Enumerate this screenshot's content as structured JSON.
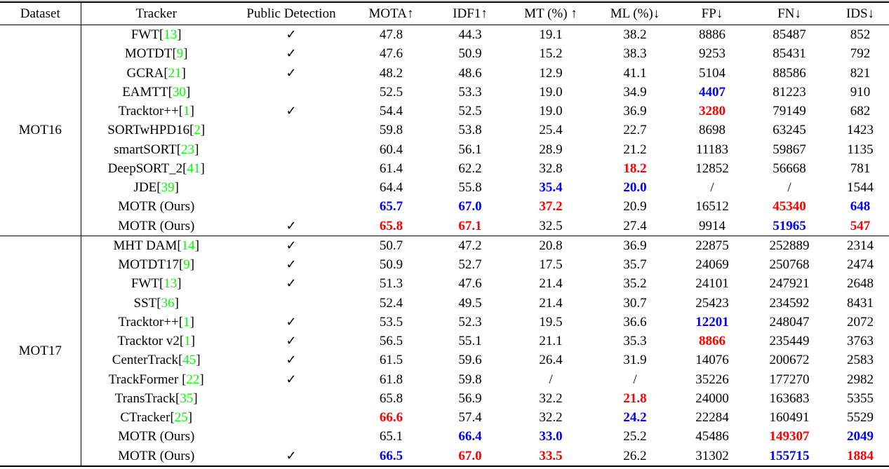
{
  "colors": {
    "citation_green": "#00ff00",
    "best_red": "#ff0000",
    "second_best_blue": "#0000ff",
    "rule_black": "#000000",
    "background": "#ffffff"
  },
  "table": {
    "checkmark": "✓",
    "slash": "/",
    "headers": [
      "Dataset",
      "Tracker",
      "Public Detection",
      "MOTA↑",
      "IDF1↑",
      "MT (%) ↑",
      "ML (%)↓",
      "FP↓",
      "FN↓",
      "IDS↓"
    ],
    "sections": [
      {
        "dataset": "MOT16",
        "rows": [
          {
            "tracker": "FWT",
            "cite": "13",
            "public": true,
            "metrics": [
              {
                "v": "47.8"
              },
              {
                "v": "44.3"
              },
              {
                "v": "19.1"
              },
              {
                "v": "38.2"
              },
              {
                "v": "8886"
              },
              {
                "v": "85487"
              },
              {
                "v": "852"
              }
            ]
          },
          {
            "tracker": "MOTDT",
            "cite": "9",
            "public": true,
            "metrics": [
              {
                "v": "47.6"
              },
              {
                "v": "50.9"
              },
              {
                "v": "15.2"
              },
              {
                "v": "38.3"
              },
              {
                "v": "9253"
              },
              {
                "v": "85431"
              },
              {
                "v": "792"
              }
            ]
          },
          {
            "tracker": "GCRA",
            "cite": "21",
            "public": true,
            "metrics": [
              {
                "v": "48.2"
              },
              {
                "v": "48.6"
              },
              {
                "v": "12.9"
              },
              {
                "v": "41.1"
              },
              {
                "v": "5104"
              },
              {
                "v": "88586"
              },
              {
                "v": "821"
              }
            ]
          },
          {
            "tracker": "EAMTT",
            "cite": "30",
            "public": false,
            "metrics": [
              {
                "v": "52.5"
              },
              {
                "v": "53.3"
              },
              {
                "v": "19.0"
              },
              {
                "v": "34.9"
              },
              {
                "v": "4407",
                "s": "blue"
              },
              {
                "v": "81223"
              },
              {
                "v": "910"
              }
            ]
          },
          {
            "tracker": "Tracktor++",
            "cite": "1",
            "public": true,
            "metrics": [
              {
                "v": "54.4"
              },
              {
                "v": "52.5"
              },
              {
                "v": "19.0"
              },
              {
                "v": "36.9"
              },
              {
                "v": "3280",
                "s": "red"
              },
              {
                "v": "79149"
              },
              {
                "v": "682"
              }
            ]
          },
          {
            "tracker": "SORTwHPD16",
            "cite": "2",
            "public": false,
            "metrics": [
              {
                "v": "59.8"
              },
              {
                "v": "53.8"
              },
              {
                "v": "25.4"
              },
              {
                "v": "22.7"
              },
              {
                "v": "8698"
              },
              {
                "v": "63245"
              },
              {
                "v": "1423"
              }
            ]
          },
          {
            "tracker": "smartSORT",
            "cite": "23",
            "public": false,
            "metrics": [
              {
                "v": "60.4"
              },
              {
                "v": "56.1"
              },
              {
                "v": "28.9"
              },
              {
                "v": "21.2"
              },
              {
                "v": "11183"
              },
              {
                "v": "59867"
              },
              {
                "v": "1135"
              }
            ]
          },
          {
            "tracker": "DeepSORT_2",
            "cite": "41",
            "public": false,
            "metrics": [
              {
                "v": "61.4"
              },
              {
                "v": "62.2"
              },
              {
                "v": "32.8"
              },
              {
                "v": "18.2",
                "s": "red"
              },
              {
                "v": "12852"
              },
              {
                "v": "56668"
              },
              {
                "v": "781"
              }
            ]
          },
          {
            "tracker": "JDE",
            "cite": "39",
            "public": false,
            "metrics": [
              {
                "v": "64.4"
              },
              {
                "v": "55.8"
              },
              {
                "v": "35.4",
                "s": "blue"
              },
              {
                "v": "20.0",
                "s": "blue"
              },
              {
                "v": "/"
              },
              {
                "v": "/"
              },
              {
                "v": "1544"
              }
            ]
          },
          {
            "tracker": "MOTR (Ours)",
            "cite": null,
            "public": false,
            "metrics": [
              {
                "v": "65.7",
                "s": "blue"
              },
              {
                "v": "67.0",
                "s": "blue"
              },
              {
                "v": "37.2",
                "s": "red"
              },
              {
                "v": "20.9"
              },
              {
                "v": "16512"
              },
              {
                "v": "45340",
                "s": "red"
              },
              {
                "v": "648",
                "s": "blue"
              }
            ]
          },
          {
            "tracker": "MOTR (Ours)",
            "cite": null,
            "public": true,
            "metrics": [
              {
                "v": "65.8",
                "s": "red"
              },
              {
                "v": "67.1",
                "s": "red"
              },
              {
                "v": "32.5"
              },
              {
                "v": "27.4"
              },
              {
                "v": "9914"
              },
              {
                "v": "51965",
                "s": "blue"
              },
              {
                "v": "547",
                "s": "red"
              }
            ]
          }
        ]
      },
      {
        "dataset": "MOT17",
        "rows": [
          {
            "tracker": "MHT DAM",
            "cite": "14",
            "public": true,
            "metrics": [
              {
                "v": "50.7"
              },
              {
                "v": "47.2"
              },
              {
                "v": "20.8"
              },
              {
                "v": "36.9"
              },
              {
                "v": "22875"
              },
              {
                "v": "252889"
              },
              {
                "v": "2314"
              }
            ]
          },
          {
            "tracker": "MOTDT17",
            "cite": "9",
            "public": true,
            "metrics": [
              {
                "v": "50.9"
              },
              {
                "v": "52.7"
              },
              {
                "v": "17.5"
              },
              {
                "v": "35.7"
              },
              {
                "v": "24069"
              },
              {
                "v": "250768"
              },
              {
                "v": "2474"
              }
            ]
          },
          {
            "tracker": "FWT",
            "cite": "13",
            "public": true,
            "metrics": [
              {
                "v": "51.3"
              },
              {
                "v": "47.6"
              },
              {
                "v": "21.4"
              },
              {
                "v": "35.2"
              },
              {
                "v": "24101"
              },
              {
                "v": "247921"
              },
              {
                "v": "2648"
              }
            ]
          },
          {
            "tracker": "SST",
            "cite": "36",
            "public": false,
            "metrics": [
              {
                "v": "52.4"
              },
              {
                "v": "49.5"
              },
              {
                "v": "21.4"
              },
              {
                "v": "30.7"
              },
              {
                "v": "25423"
              },
              {
                "v": "234592"
              },
              {
                "v": "8431"
              }
            ]
          },
          {
            "tracker": "Tracktor++",
            "cite": "1",
            "public": true,
            "metrics": [
              {
                "v": "53.5"
              },
              {
                "v": "52.3"
              },
              {
                "v": "19.5"
              },
              {
                "v": "36.6"
              },
              {
                "v": "12201",
                "s": "blue"
              },
              {
                "v": "248047"
              },
              {
                "v": "2072"
              }
            ]
          },
          {
            "tracker": "Tracktor v2",
            "cite": "1",
            "public": true,
            "metrics": [
              {
                "v": "56.5"
              },
              {
                "v": "55.1"
              },
              {
                "v": "21.1"
              },
              {
                "v": "35.3"
              },
              {
                "v": "8866",
                "s": "red"
              },
              {
                "v": "235449"
              },
              {
                "v": "3763"
              }
            ]
          },
          {
            "tracker": "CenterTrack",
            "cite": "45",
            "public": true,
            "metrics": [
              {
                "v": "61.5"
              },
              {
                "v": "59.6"
              },
              {
                "v": "26.4"
              },
              {
                "v": "31.9"
              },
              {
                "v": "14076"
              },
              {
                "v": "200672"
              },
              {
                "v": "2583"
              }
            ]
          },
          {
            "tracker": "TrackFormer ",
            "cite": "22",
            "public": true,
            "metrics": [
              {
                "v": "61.8"
              },
              {
                "v": "59.8"
              },
              {
                "v": "/"
              },
              {
                "v": "/"
              },
              {
                "v": "35226"
              },
              {
                "v": "177270"
              },
              {
                "v": "2982"
              }
            ]
          },
          {
            "tracker": "TransTrack",
            "cite": "35",
            "public": false,
            "metrics": [
              {
                "v": "65.8"
              },
              {
                "v": "56.9"
              },
              {
                "v": "32.2"
              },
              {
                "v": "21.8",
                "s": "red"
              },
              {
                "v": "24000"
              },
              {
                "v": "163683"
              },
              {
                "v": "5355"
              }
            ]
          },
          {
            "tracker": "CTracker",
            "cite": "25",
            "public": false,
            "metrics": [
              {
                "v": "66.6",
                "s": "red"
              },
              {
                "v": "57.4"
              },
              {
                "v": "32.2"
              },
              {
                "v": "24.2",
                "s": "blue"
              },
              {
                "v": "22284"
              },
              {
                "v": "160491"
              },
              {
                "v": "5529"
              }
            ]
          },
          {
            "tracker": "MOTR (Ours)",
            "cite": null,
            "public": false,
            "metrics": [
              {
                "v": "65.1"
              },
              {
                "v": "66.4",
                "s": "blue"
              },
              {
                "v": "33.0",
                "s": "blue"
              },
              {
                "v": "25.2"
              },
              {
                "v": "45486"
              },
              {
                "v": "149307",
                "s": "red"
              },
              {
                "v": "2049",
                "s": "blue"
              }
            ]
          },
          {
            "tracker": "MOTR (Ours)",
            "cite": null,
            "public": true,
            "metrics": [
              {
                "v": "66.5",
                "s": "blue"
              },
              {
                "v": "67.0",
                "s": "red"
              },
              {
                "v": "33.5",
                "s": "red"
              },
              {
                "v": "26.2"
              },
              {
                "v": "31302"
              },
              {
                "v": "155715",
                "s": "blue"
              },
              {
                "v": "1884",
                "s": "red"
              }
            ]
          }
        ]
      }
    ]
  }
}
